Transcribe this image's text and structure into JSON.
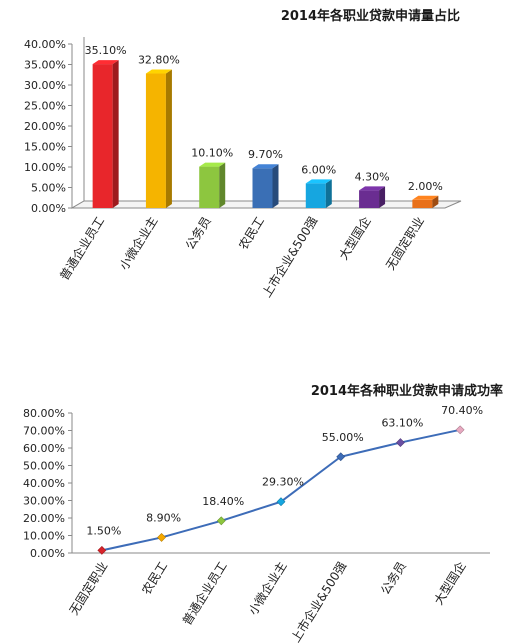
{
  "chart_data": [
    {
      "type": "bar",
      "title": "2014年各职业贷款申请量占比",
      "categories": [
        "普通企业员工",
        "小微企业主",
        "公务员",
        "农民工",
        "上市企业&500强",
        "大型国企",
        "无固定职业"
      ],
      "values": [
        35.1,
        32.8,
        10.1,
        9.7,
        6.0,
        4.3,
        2.0
      ],
      "data_labels": [
        "35.10%",
        "32.80%",
        "10.10%",
        "9.70%",
        "6.00%",
        "4.30%",
        "2.00%"
      ],
      "yticks": [
        "0.00%",
        "5.00%",
        "10.00%",
        "15.00%",
        "20.00%",
        "25.00%",
        "30.00%",
        "35.00%",
        "40.00%"
      ],
      "ylim": [
        0,
        40
      ],
      "colors": [
        "#e8262b",
        "#f5b400",
        "#8dc63f",
        "#3a6fb5",
        "#16a6e0",
        "#6a2d91",
        "#e8701a"
      ],
      "grid": false,
      "legend": "none",
      "style": "3d"
    },
    {
      "type": "line",
      "title": "2014年各种职业贷款申请成功率",
      "categories": [
        "无固定职业",
        "农民工",
        "普通企业员工",
        "小微企业主",
        "上市企业&500强",
        "公务员",
        "大型国企"
      ],
      "values": [
        1.5,
        8.9,
        18.4,
        29.3,
        55.0,
        63.1,
        70.4
      ],
      "data_labels": [
        "1.50%",
        "8.90%",
        "18.40%",
        "29.30%",
        "55.00%",
        "63.10%",
        "70.40%"
      ],
      "yticks": [
        "0.00%",
        "10.00%",
        "20.00%",
        "30.00%",
        "40.00%",
        "50.00%",
        "60.00%",
        "70.00%",
        "80.00%"
      ],
      "ylim": [
        0,
        80
      ],
      "line_color": "#3d6cb8",
      "marker_colors": [
        "#d8232a",
        "#f5a800",
        "#8dc63f",
        "#16a6e0",
        "#3d6cb8",
        "#6a4fa3",
        "#e7a9c0"
      ],
      "grid": false,
      "legend": "none"
    }
  ]
}
